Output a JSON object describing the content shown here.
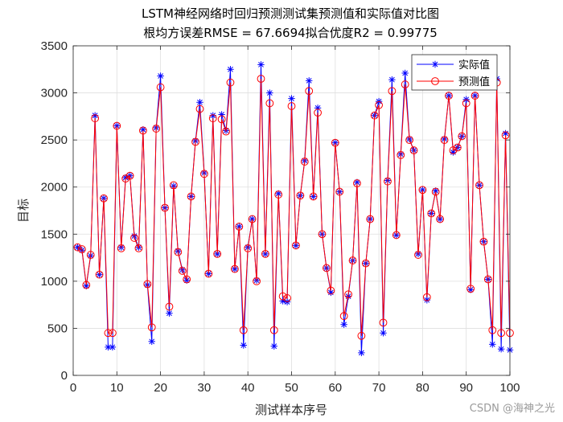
{
  "chart_data": {
    "type": "line",
    "title": "LSTM神经网络时回归预测测试集预测值和实际值对比图",
    "subtitle": "根均方误差RMSE = 67.6694拟合优度R2 = 0.99775",
    "xlabel": "测试样本序号",
    "ylabel": "目标",
    "xlim": [
      0,
      100
    ],
    "ylim": [
      0,
      3500
    ],
    "xticks": [
      0,
      10,
      20,
      30,
      40,
      50,
      60,
      70,
      80,
      90,
      100
    ],
    "yticks": [
      0,
      500,
      1000,
      1500,
      2000,
      2500,
      3000,
      3500
    ],
    "grid": true,
    "legend_position": "top-right",
    "x": [
      1,
      2,
      3,
      4,
      5,
      6,
      7,
      8,
      9,
      10,
      11,
      12,
      13,
      14,
      15,
      16,
      17,
      18,
      19,
      20,
      21,
      22,
      23,
      24,
      25,
      26,
      27,
      28,
      29,
      30,
      31,
      32,
      33,
      34,
      35,
      36,
      37,
      38,
      39,
      40,
      41,
      42,
      43,
      44,
      45,
      46,
      47,
      48,
      49,
      50,
      51,
      52,
      53,
      54,
      55,
      56,
      57,
      58,
      59,
      60,
      61,
      62,
      63,
      64,
      65,
      66,
      67,
      68,
      69,
      70,
      71,
      72,
      73,
      74,
      75,
      76,
      77,
      78,
      79,
      80,
      81,
      82,
      83,
      84,
      85,
      86,
      87,
      88,
      89,
      90,
      91,
      92,
      93,
      94,
      95,
      96,
      97,
      98,
      99,
      100
    ],
    "series": [
      {
        "name": "实际值",
        "color": "#0000ff",
        "marker": "star",
        "values": [
          1360,
          1330,
          950,
          1270,
          2760,
          1070,
          1880,
          300,
          300,
          2650,
          1360,
          2100,
          2120,
          1480,
          1360,
          2610,
          960,
          360,
          2630,
          3180,
          1780,
          660,
          2010,
          1320,
          1120,
          1010,
          1900,
          2490,
          2900,
          2150,
          1080,
          2760,
          1290,
          2770,
          2600,
          3250,
          1130,
          1580,
          320,
          1360,
          1660,
          1010,
          3300,
          1290,
          3000,
          310,
          1930,
          790,
          780,
          2940,
          1380,
          1910,
          2280,
          3130,
          1900,
          2840,
          1500,
          1140,
          880,
          2470,
          1950,
          540,
          840,
          1220,
          2050,
          240,
          1190,
          1660,
          2760,
          2910,
          450,
          2070,
          3140,
          1490,
          2350,
          3210,
          2510,
          2390,
          1290,
          1970,
          800,
          1720,
          1960,
          1660,
          2510,
          2970,
          2370,
          2420,
          2540,
          2930,
          910,
          2970,
          2020,
          1420,
          1020,
          330,
          3150,
          280,
          2570,
          270
        ]
      },
      {
        "name": "预测值",
        "color": "#ff0000",
        "marker": "circle",
        "values": [
          1360,
          1340,
          960,
          1280,
          2730,
          1070,
          1880,
          450,
          450,
          2650,
          1350,
          2090,
          2120,
          1460,
          1350,
          2600,
          970,
          510,
          2620,
          3060,
          1780,
          730,
          2020,
          1310,
          1110,
          1020,
          1900,
          2480,
          2830,
          2140,
          1080,
          2730,
          1290,
          2720,
          2590,
          3110,
          1130,
          1580,
          480,
          1350,
          1660,
          1000,
          3150,
          1290,
          2890,
          480,
          1920,
          840,
          820,
          2860,
          1380,
          1910,
          2270,
          3020,
          1900,
          2790,
          1500,
          1140,
          900,
          2470,
          1950,
          630,
          860,
          1220,
          2040,
          420,
          1190,
          1660,
          2760,
          2870,
          560,
          2060,
          3020,
          1490,
          2340,
          3090,
          2500,
          2390,
          1280,
          1970,
          830,
          1720,
          1950,
          1660,
          2500,
          2970,
          2390,
          2420,
          2540,
          2890,
          920,
          2970,
          2020,
          1420,
          1020,
          480,
          3110,
          450,
          2550,
          450
        ]
      }
    ]
  },
  "watermark": "CSDN @海神之光"
}
